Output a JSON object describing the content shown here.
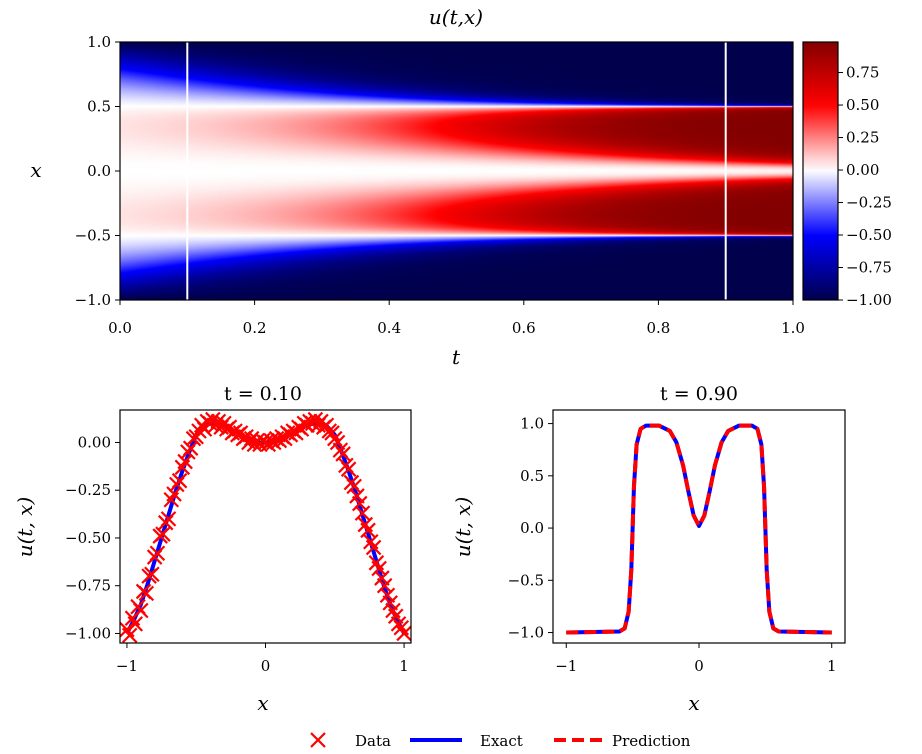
{
  "chart_data": [
    {
      "type": "heatmap",
      "title": "u(t,x)",
      "xlabel": "t",
      "ylabel": "x",
      "xlim": [
        0.0,
        1.0
      ],
      "ylim": [
        -1.0,
        1.0
      ],
      "xticks": [
        "0.0",
        "0.2",
        "0.4",
        "0.6",
        "0.8",
        "1.0"
      ],
      "yticks": [
        "1.0",
        "0.5",
        "0.0",
        "−0.5",
        "−1.0"
      ],
      "colormap": "seismic",
      "colorbar": {
        "range": [
          -1.0,
          0.985
        ],
        "ticks": [
          "0.75",
          "0.50",
          "0.25",
          "0.00",
          "−0.25",
          "−0.50",
          "−0.75",
          "−1.00"
        ]
      },
      "vertical_lines_at_t": [
        0.1,
        0.9
      ],
      "line_color": "#ffffff"
    },
    {
      "type": "line",
      "title": "t = 0.10",
      "xlabel": "x",
      "ylabel": "u(t, x)",
      "xlim": [
        -1.05,
        1.05
      ],
      "ylim": [
        -1.05,
        0.17
      ],
      "xticks": [
        "−1",
        "0",
        "1"
      ],
      "yticks": [
        "0.00",
        "−0.25",
        "−0.50",
        "−0.75",
        "−1.00"
      ],
      "exact": {
        "x": [
          -1,
          -0.95,
          -0.9,
          -0.85,
          -0.8,
          -0.75,
          -0.7,
          -0.65,
          -0.6,
          -0.55,
          -0.5,
          -0.45,
          -0.4,
          -0.35,
          -0.3,
          -0.25,
          -0.2,
          -0.15,
          -0.1,
          -0.05,
          0,
          0.05,
          0.1,
          0.15,
          0.2,
          0.25,
          0.3,
          0.35,
          0.4,
          0.45,
          0.5,
          0.55,
          0.6,
          0.65,
          0.7,
          0.75,
          0.8,
          0.85,
          0.9,
          0.95,
          1
        ],
        "u": [
          -1.0,
          -0.93,
          -0.85,
          -0.74,
          -0.62,
          -0.5,
          -0.38,
          -0.26,
          -0.15,
          -0.05,
          0.04,
          0.08,
          0.1,
          0.1,
          0.09,
          0.07,
          0.05,
          0.03,
          0.01,
          0.0,
          0.0,
          0.0,
          0.01,
          0.03,
          0.05,
          0.07,
          0.09,
          0.1,
          0.1,
          0.08,
          0.04,
          -0.05,
          -0.15,
          -0.26,
          -0.38,
          -0.5,
          -0.62,
          -0.74,
          -0.85,
          -0.93,
          -1.0
        ]
      },
      "data": [
        [
          -1.0,
          -0.98
        ],
        [
          -0.98,
          -1.01
        ],
        [
          -0.96,
          -0.92
        ],
        [
          -0.94,
          -0.95
        ],
        [
          -0.92,
          -0.86
        ],
        [
          -0.9,
          -0.88
        ],
        [
          -0.88,
          -0.78
        ],
        [
          -0.86,
          -0.79
        ],
        [
          -0.84,
          -0.7
        ],
        [
          -0.82,
          -0.69
        ],
        [
          -0.8,
          -0.6
        ],
        [
          -0.78,
          -0.58
        ],
        [
          -0.76,
          -0.49
        ],
        [
          -0.74,
          -0.48
        ],
        [
          -0.72,
          -0.42
        ],
        [
          -0.7,
          -0.4
        ],
        [
          -0.68,
          -0.3
        ],
        [
          -0.66,
          -0.27
        ],
        [
          -0.64,
          -0.22
        ],
        [
          -0.62,
          -0.2
        ],
        [
          -0.6,
          -0.13
        ],
        [
          -0.58,
          -0.1
        ],
        [
          -0.56,
          -0.05
        ],
        [
          -0.54,
          -0.03
        ],
        [
          -0.52,
          0.02
        ],
        [
          -0.5,
          0.03
        ],
        [
          -0.48,
          0.06
        ],
        [
          -0.46,
          0.09
        ],
        [
          -0.44,
          0.07
        ],
        [
          -0.42,
          0.11
        ],
        [
          -0.4,
          0.1
        ],
        [
          -0.38,
          0.12
        ],
        [
          -0.36,
          0.09
        ],
        [
          -0.34,
          0.11
        ],
        [
          -0.32,
          0.08
        ],
        [
          -0.3,
          0.1
        ],
        [
          -0.28,
          0.07
        ],
        [
          -0.26,
          0.08
        ],
        [
          -0.24,
          0.05
        ],
        [
          -0.22,
          0.06
        ],
        [
          -0.2,
          0.04
        ],
        [
          -0.18,
          0.05
        ],
        [
          -0.16,
          0.02
        ],
        [
          -0.14,
          0.03
        ],
        [
          -0.12,
          0.0
        ],
        [
          -0.1,
          0.02
        ],
        [
          -0.08,
          -0.01
        ],
        [
          -0.06,
          0.01
        ],
        [
          -0.04,
          -0.01
        ],
        [
          -0.02,
          0.01
        ],
        [
          0.0,
          0.0
        ],
        [
          0.02,
          -0.01
        ],
        [
          0.04,
          0.01
        ],
        [
          0.06,
          0.0
        ],
        [
          0.08,
          0.02
        ],
        [
          0.1,
          0.01
        ],
        [
          0.12,
          0.03
        ],
        [
          0.14,
          0.02
        ],
        [
          0.16,
          0.05
        ],
        [
          0.18,
          0.04
        ],
        [
          0.2,
          0.06
        ],
        [
          0.22,
          0.05
        ],
        [
          0.24,
          0.08
        ],
        [
          0.26,
          0.07
        ],
        [
          0.28,
          0.1
        ],
        [
          0.3,
          0.09
        ],
        [
          0.32,
          0.11
        ],
        [
          0.34,
          0.1
        ],
        [
          0.36,
          0.12
        ],
        [
          0.38,
          0.09
        ],
        [
          0.4,
          0.11
        ],
        [
          0.42,
          0.08
        ],
        [
          0.44,
          0.09
        ],
        [
          0.46,
          0.06
        ],
        [
          0.48,
          0.05
        ],
        [
          0.5,
          0.02
        ],
        [
          0.52,
          0.0
        ],
        [
          0.54,
          -0.04
        ],
        [
          0.56,
          -0.06
        ],
        [
          0.58,
          -0.12
        ],
        [
          0.6,
          -0.14
        ],
        [
          0.62,
          -0.21
        ],
        [
          0.64,
          -0.23
        ],
        [
          0.66,
          -0.28
        ],
        [
          0.68,
          -0.32
        ],
        [
          0.7,
          -0.37
        ],
        [
          0.72,
          -0.43
        ],
        [
          0.74,
          -0.46
        ],
        [
          0.76,
          -0.52
        ],
        [
          0.78,
          -0.55
        ],
        [
          0.8,
          -0.63
        ],
        [
          0.82,
          -0.66
        ],
        [
          0.84,
          -0.71
        ],
        [
          0.86,
          -0.75
        ],
        [
          0.88,
          -0.8
        ],
        [
          0.9,
          -0.84
        ],
        [
          0.92,
          -0.88
        ],
        [
          0.94,
          -0.91
        ],
        [
          0.96,
          -0.95
        ],
        [
          0.98,
          -0.97
        ],
        [
          1.0,
          -1.0
        ]
      ]
    },
    {
      "type": "line",
      "title": "t = 0.90",
      "xlabel": "x",
      "ylabel": "u(t, x)",
      "xlim": [
        -1.1,
        1.1
      ],
      "ylim": [
        -1.1,
        1.13
      ],
      "xticks": [
        "−1",
        "0",
        "1"
      ],
      "yticks": [
        "1.0",
        "0.5",
        "0.0",
        "−0.5",
        "−1.0"
      ],
      "exact": {
        "x": [
          -1,
          -0.6,
          -0.56,
          -0.53,
          -0.51,
          -0.5,
          -0.49,
          -0.47,
          -0.44,
          -0.4,
          -0.3,
          -0.22,
          -0.17,
          -0.12,
          -0.08,
          -0.04,
          0,
          0.04,
          0.08,
          0.12,
          0.17,
          0.22,
          0.3,
          0.4,
          0.44,
          0.47,
          0.49,
          0.5,
          0.51,
          0.53,
          0.56,
          0.6,
          1
        ],
        "u": [
          -1.0,
          -0.99,
          -0.96,
          -0.8,
          -0.4,
          0.0,
          0.4,
          0.8,
          0.95,
          0.98,
          0.98,
          0.93,
          0.82,
          0.6,
          0.35,
          0.12,
          0.02,
          0.12,
          0.35,
          0.6,
          0.82,
          0.93,
          0.98,
          0.98,
          0.95,
          0.8,
          0.4,
          0.0,
          -0.4,
          -0.8,
          -0.96,
          -0.99,
          -1.0
        ]
      }
    }
  ],
  "legend": {
    "position": "bottom-center",
    "entries": [
      {
        "label": "Data",
        "marker": "x",
        "color": "#ff0000"
      },
      {
        "label": "Exact",
        "style": "solid",
        "color": "#0000ff"
      },
      {
        "label": "Prediction",
        "style": "dashed",
        "color": "#ff0000"
      }
    ]
  }
}
